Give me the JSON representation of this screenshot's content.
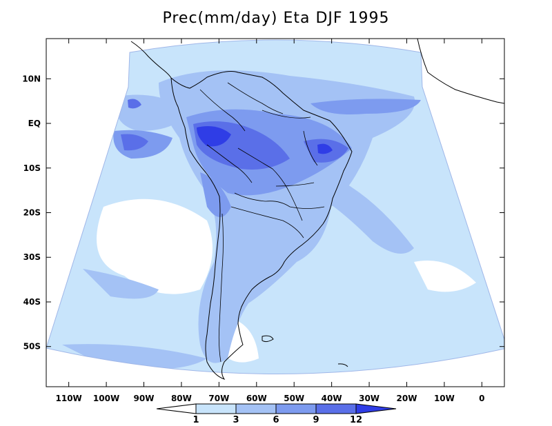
{
  "title": "Prec(mm/day) Eta DJF 1995",
  "map": {
    "lat_labels": [
      "10N",
      "EQ",
      "10S",
      "20S",
      "30S",
      "40S",
      "50S"
    ],
    "lat_values": [
      10,
      0,
      -10,
      -20,
      -30,
      -40,
      -50
    ],
    "lon_labels": [
      "110W",
      "100W",
      "90W",
      "80W",
      "70W",
      "60W",
      "50W",
      "40W",
      "30W",
      "20W",
      "10W",
      "0"
    ],
    "lon_values": [
      -110,
      -100,
      -90,
      -80,
      -70,
      -60,
      -50,
      -40,
      -30,
      -20,
      -10,
      0
    ],
    "lon_range": [
      -116,
      6
    ],
    "lat_range": [
      -59,
      19
    ],
    "colors": {
      "level_1_3": "#c8e4fb",
      "level_3_6": "#a4c2f5",
      "level_6_9": "#7d9bef",
      "level_9_12": "#5a6fe8",
      "level_12_plus": "#2f3de6",
      "below_1": "#ffffff",
      "coastline": "#000000"
    }
  },
  "colorbar": {
    "labels": [
      "1",
      "3",
      "6",
      "9",
      "12"
    ],
    "levels": [
      1,
      3,
      6,
      9,
      12
    ]
  }
}
